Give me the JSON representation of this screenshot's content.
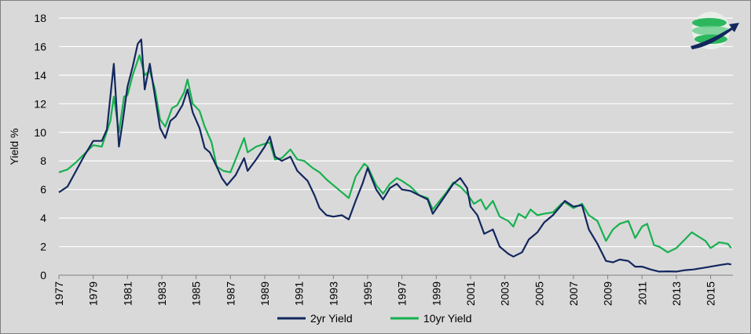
{
  "chart_data": {
    "type": "line",
    "title": "",
    "xlabel": "",
    "ylabel": "Yield %",
    "xlim": [
      1977,
      2016.3
    ],
    "ylim": [
      0,
      18
    ],
    "y_ticks": [
      "0",
      "2",
      "4",
      "6",
      "8",
      "10",
      "12",
      "14",
      "16",
      "18"
    ],
    "x_ticks": [
      "1977",
      "1979",
      "1981",
      "1983",
      "1985",
      "1987",
      "1989",
      "1991",
      "1993",
      "1995",
      "1997",
      "1999",
      "2001",
      "2003",
      "2005",
      "2007",
      "2009",
      "2011",
      "2013",
      "2015"
    ],
    "grid": "horizontal",
    "legend_position": "bottom",
    "colors": {
      "two_year": "#13275e",
      "ten_year": "#17b04f",
      "grid": "#ffffff"
    },
    "series": [
      {
        "name": "2yr Yield",
        "points": [
          [
            1977.0,
            5.8
          ],
          [
            1977.5,
            6.2
          ],
          [
            1978.0,
            7.3
          ],
          [
            1978.5,
            8.4
          ],
          [
            1979.0,
            9.4
          ],
          [
            1979.5,
            9.4
          ],
          [
            1979.8,
            10.2
          ],
          [
            1980.2,
            14.8
          ],
          [
            1980.5,
            9.0
          ],
          [
            1980.7,
            10.6
          ],
          [
            1981.0,
            13.2
          ],
          [
            1981.3,
            14.6
          ],
          [
            1981.6,
            16.2
          ],
          [
            1981.8,
            16.5
          ],
          [
            1982.0,
            13.0
          ],
          [
            1982.3,
            14.8
          ],
          [
            1982.6,
            12.5
          ],
          [
            1982.9,
            10.3
          ],
          [
            1983.2,
            9.6
          ],
          [
            1983.5,
            10.8
          ],
          [
            1983.8,
            11.1
          ],
          [
            1984.2,
            11.9
          ],
          [
            1984.5,
            13.0
          ],
          [
            1984.8,
            11.4
          ],
          [
            1985.2,
            10.3
          ],
          [
            1985.5,
            8.9
          ],
          [
            1985.8,
            8.6
          ],
          [
            1986.2,
            7.6
          ],
          [
            1986.5,
            6.8
          ],
          [
            1986.8,
            6.3
          ],
          [
            1987.3,
            7.0
          ],
          [
            1987.8,
            8.2
          ],
          [
            1988.0,
            7.3
          ],
          [
            1988.5,
            8.1
          ],
          [
            1989.0,
            9.0
          ],
          [
            1989.3,
            9.7
          ],
          [
            1989.6,
            8.3
          ],
          [
            1990.0,
            8.0
          ],
          [
            1990.5,
            8.3
          ],
          [
            1990.9,
            7.3
          ],
          [
            1991.5,
            6.6
          ],
          [
            1991.9,
            5.6
          ],
          [
            1992.2,
            4.7
          ],
          [
            1992.6,
            4.2
          ],
          [
            1993.0,
            4.1
          ],
          [
            1993.5,
            4.2
          ],
          [
            1993.9,
            3.9
          ],
          [
            1994.3,
            5.2
          ],
          [
            1994.7,
            6.4
          ],
          [
            1995.0,
            7.5
          ],
          [
            1995.5,
            6.0
          ],
          [
            1995.9,
            5.3
          ],
          [
            1996.3,
            6.1
          ],
          [
            1996.7,
            6.4
          ],
          [
            1997.0,
            6.0
          ],
          [
            1997.5,
            5.9
          ],
          [
            1998.0,
            5.6
          ],
          [
            1998.5,
            5.3
          ],
          [
            1998.8,
            4.3
          ],
          [
            1999.2,
            5.0
          ],
          [
            1999.6,
            5.7
          ],
          [
            2000.0,
            6.4
          ],
          [
            2000.4,
            6.8
          ],
          [
            2000.8,
            6.1
          ],
          [
            2001.0,
            4.8
          ],
          [
            2001.4,
            4.2
          ],
          [
            2001.8,
            2.9
          ],
          [
            2002.3,
            3.2
          ],
          [
            2002.7,
            2.0
          ],
          [
            2003.2,
            1.5
          ],
          [
            2003.5,
            1.3
          ],
          [
            2004.0,
            1.6
          ],
          [
            2004.4,
            2.5
          ],
          [
            2004.9,
            3.0
          ],
          [
            2005.3,
            3.7
          ],
          [
            2005.8,
            4.2
          ],
          [
            2006.3,
            4.9
          ],
          [
            2006.5,
            5.2
          ],
          [
            2007.0,
            4.8
          ],
          [
            2007.5,
            4.9
          ],
          [
            2007.9,
            3.2
          ],
          [
            2008.4,
            2.2
          ],
          [
            2008.9,
            1.0
          ],
          [
            2009.3,
            0.9
          ],
          [
            2009.7,
            1.1
          ],
          [
            2010.2,
            1.0
          ],
          [
            2010.6,
            0.6
          ],
          [
            2011.0,
            0.6
          ],
          [
            2011.5,
            0.4
          ],
          [
            2012.0,
            0.25
          ],
          [
            2012.5,
            0.27
          ],
          [
            2013.0,
            0.25
          ],
          [
            2013.5,
            0.35
          ],
          [
            2014.0,
            0.4
          ],
          [
            2014.5,
            0.5
          ],
          [
            2015.0,
            0.6
          ],
          [
            2015.5,
            0.7
          ],
          [
            2016.0,
            0.8
          ],
          [
            2016.2,
            0.75
          ]
        ]
      },
      {
        "name": "10yr Yield",
        "points": [
          [
            1977.0,
            7.2
          ],
          [
            1977.5,
            7.4
          ],
          [
            1978.0,
            7.9
          ],
          [
            1978.5,
            8.5
          ],
          [
            1979.0,
            9.1
          ],
          [
            1979.5,
            9.0
          ],
          [
            1980.0,
            10.8
          ],
          [
            1980.2,
            12.5
          ],
          [
            1980.5,
            10.0
          ],
          [
            1980.8,
            12.5
          ],
          [
            1981.0,
            12.6
          ],
          [
            1981.3,
            14.0
          ],
          [
            1981.7,
            15.4
          ],
          [
            1982.0,
            14.0
          ],
          [
            1982.3,
            14.3
          ],
          [
            1982.6,
            13.0
          ],
          [
            1982.9,
            10.9
          ],
          [
            1983.2,
            10.4
          ],
          [
            1983.6,
            11.7
          ],
          [
            1983.9,
            11.9
          ],
          [
            1984.3,
            12.8
          ],
          [
            1984.5,
            13.7
          ],
          [
            1984.8,
            12.0
          ],
          [
            1985.2,
            11.5
          ],
          [
            1985.5,
            10.4
          ],
          [
            1985.9,
            9.3
          ],
          [
            1986.2,
            7.6
          ],
          [
            1986.6,
            7.3
          ],
          [
            1987.0,
            7.2
          ],
          [
            1987.4,
            8.4
          ],
          [
            1987.8,
            9.6
          ],
          [
            1988.0,
            8.6
          ],
          [
            1988.5,
            9.0
          ],
          [
            1989.0,
            9.2
          ],
          [
            1989.3,
            9.3
          ],
          [
            1989.6,
            8.1
          ],
          [
            1990.0,
            8.2
          ],
          [
            1990.5,
            8.8
          ],
          [
            1990.9,
            8.1
          ],
          [
            1991.3,
            8.0
          ],
          [
            1991.8,
            7.5
          ],
          [
            1992.2,
            7.2
          ],
          [
            1992.6,
            6.7
          ],
          [
            1993.0,
            6.3
          ],
          [
            1993.5,
            5.8
          ],
          [
            1993.9,
            5.4
          ],
          [
            1994.3,
            6.9
          ],
          [
            1994.8,
            7.8
          ],
          [
            1995.0,
            7.6
          ],
          [
            1995.5,
            6.3
          ],
          [
            1995.9,
            5.7
          ],
          [
            1996.3,
            6.4
          ],
          [
            1996.7,
            6.8
          ],
          [
            1997.0,
            6.6
          ],
          [
            1997.5,
            6.2
          ],
          [
            1998.0,
            5.6
          ],
          [
            1998.5,
            5.4
          ],
          [
            1998.8,
            4.6
          ],
          [
            1999.2,
            5.2
          ],
          [
            1999.6,
            5.8
          ],
          [
            2000.0,
            6.5
          ],
          [
            2000.4,
            6.2
          ],
          [
            2000.8,
            5.7
          ],
          [
            2001.2,
            5.0
          ],
          [
            2001.6,
            5.3
          ],
          [
            2001.9,
            4.6
          ],
          [
            2002.3,
            5.2
          ],
          [
            2002.7,
            4.1
          ],
          [
            2003.2,
            3.8
          ],
          [
            2003.5,
            3.4
          ],
          [
            2003.8,
            4.3
          ],
          [
            2004.2,
            4.0
          ],
          [
            2004.5,
            4.6
          ],
          [
            2004.9,
            4.2
          ],
          [
            2005.3,
            4.3
          ],
          [
            2005.8,
            4.4
          ],
          [
            2006.3,
            5.0
          ],
          [
            2006.5,
            5.1
          ],
          [
            2007.0,
            4.7
          ],
          [
            2007.5,
            5.0
          ],
          [
            2007.9,
            4.2
          ],
          [
            2008.4,
            3.8
          ],
          [
            2008.9,
            2.4
          ],
          [
            2009.3,
            3.2
          ],
          [
            2009.7,
            3.6
          ],
          [
            2010.2,
            3.8
          ],
          [
            2010.6,
            2.6
          ],
          [
            2011.0,
            3.4
          ],
          [
            2011.3,
            3.6
          ],
          [
            2011.7,
            2.1
          ],
          [
            2012.0,
            2.0
          ],
          [
            2012.5,
            1.6
          ],
          [
            2013.0,
            1.9
          ],
          [
            2013.5,
            2.5
          ],
          [
            2013.9,
            3.0
          ],
          [
            2014.3,
            2.7
          ],
          [
            2014.7,
            2.4
          ],
          [
            2015.0,
            1.9
          ],
          [
            2015.5,
            2.3
          ],
          [
            2016.0,
            2.2
          ],
          [
            2016.2,
            1.9
          ]
        ]
      }
    ]
  }
}
